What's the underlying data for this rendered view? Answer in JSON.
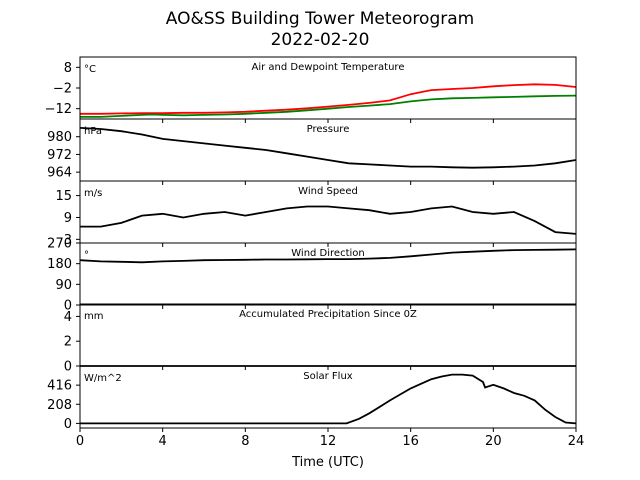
{
  "chart_data": {
    "type": "line",
    "title": "AO&SS Building Tower Meteorogram",
    "subtitle": "2022-02-20",
    "xlabel": "Time (UTC)",
    "x_ticks": [
      "0",
      "4",
      "8",
      "12",
      "16",
      "20",
      "24"
    ],
    "xlim": [
      0,
      24
    ],
    "panels": [
      {
        "label": "Air and Dewpoint Temperature",
        "unit": "°C",
        "ylim": [
          -17,
          13
        ],
        "y_ticks": [
          "8",
          "−2",
          "−12"
        ],
        "series": [
          {
            "key": "air_temperature",
            "color": "#ff0000",
            "x": [
              0,
              1,
              2,
              3,
              4,
              5,
              6,
              7,
              8,
              9,
              10,
              11,
              12,
              13,
              14,
              15,
              15.5,
              16,
              16.5,
              17,
              18,
              19,
              20,
              21,
              22,
              23,
              24
            ],
            "y": [
              -14.5,
              -14.5,
              -14.3,
              -14.2,
              -14.2,
              -14.0,
              -14.0,
              -13.8,
              -13.5,
              -13.0,
              -12.5,
              -11.8,
              -11.0,
              -10.2,
              -9.2,
              -8.0,
              -6.5,
              -5.0,
              -4.0,
              -3.0,
              -2.5,
              -2.0,
              -1.2,
              -0.6,
              -0.2,
              -0.5,
              -1.5
            ]
          },
          {
            "key": "dewpoint",
            "color": "#008000",
            "x": [
              0,
              1,
              2,
              3,
              3.5,
              4,
              5,
              6,
              7,
              8,
              9,
              10,
              11,
              12,
              13,
              14,
              15,
              16,
              17,
              18,
              19,
              20,
              21,
              22,
              23,
              24
            ],
            "y": [
              -16.0,
              -16.0,
              -15.5,
              -15.0,
              -14.8,
              -15.0,
              -15.2,
              -15.0,
              -14.8,
              -14.5,
              -14.0,
              -13.5,
              -12.8,
              -12.0,
              -11.2,
              -10.5,
              -9.8,
              -8.5,
              -7.5,
              -7.0,
              -6.8,
              -6.5,
              -6.3,
              -6.0,
              -5.8,
              -5.7
            ]
          }
        ]
      },
      {
        "label": "Pressure",
        "unit": "hPa",
        "ylim": [
          960,
          988
        ],
        "y_ticks": [
          "980",
          "972",
          "964"
        ],
        "series": [
          {
            "key": "pressure",
            "color": "#000000",
            "x": [
              0,
              1,
              2,
              3,
              4,
              5,
              6,
              7,
              8,
              9,
              10,
              11,
              12,
              13,
              14,
              15,
              16,
              17,
              18,
              19,
              20,
              21,
              22,
              23,
              24
            ],
            "y": [
              984,
              983.5,
              982.5,
              981,
              979,
              978,
              977,
              976,
              975,
              974,
              972.5,
              971,
              969.5,
              968,
              967.5,
              967,
              966.5,
              966.5,
              966.2,
              966,
              966.2,
              966.5,
              967,
              968,
              969.5
            ]
          }
        ]
      },
      {
        "label": "Wind Speed",
        "unit": "m/s",
        "ylim": [
          2,
          19
        ],
        "y_ticks": [
          "15",
          "9",
          "3"
        ],
        "series": [
          {
            "key": "wind_speed",
            "color": "#000000",
            "x": [
              0,
              1,
              2,
              3,
              4,
              5,
              6,
              7,
              8,
              9,
              10,
              11,
              12,
              13,
              14,
              15,
              16,
              17,
              18,
              19,
              20,
              21,
              22,
              23,
              24
            ],
            "y": [
              6.5,
              6.5,
              7.5,
              9.5,
              10.0,
              9.0,
              10.0,
              10.5,
              9.5,
              10.5,
              11.5,
              12.0,
              12.0,
              11.5,
              11.0,
              10.0,
              10.5,
              11.5,
              12.0,
              10.5,
              10.0,
              10.5,
              8.0,
              5.0,
              4.5
            ]
          }
        ]
      },
      {
        "label": "Wind Direction",
        "unit": "°",
        "ylim": [
          0,
          270
        ],
        "y_ticks": [
          "270",
          "180",
          "90",
          "0"
        ],
        "series": [
          {
            "key": "wind_direction",
            "color": "#000000",
            "x": [
              0,
              1,
              2,
              3,
              4,
              5,
              6,
              7,
              8,
              9,
              10,
              11,
              12,
              13,
              14,
              15,
              16,
              17,
              18,
              19,
              20,
              21,
              22,
              23,
              24
            ],
            "y": [
              195,
              190,
              188,
              186,
              190,
              192,
              195,
              196,
              197,
              198,
              198,
              199,
              200,
              200,
              202,
              205,
              212,
              220,
              228,
              232,
              236,
              239,
              240,
              241,
              242
            ]
          }
        ]
      },
      {
        "label": "Accumulated Precipitation Since 0Z",
        "unit": "mm",
        "ylim": [
          0,
          5
        ],
        "y_ticks": [
          "4",
          "2",
          "0"
        ],
        "series": [
          {
            "key": "precipitation",
            "color": "#000000",
            "x": [
              0,
              24
            ],
            "y": [
              0,
              0
            ]
          }
        ]
      },
      {
        "label": "Solar Flux",
        "unit": "W/m^2",
        "ylim": [
          -50,
          624
        ],
        "y_ticks": [
          "416",
          "208",
          "0"
        ],
        "series": [
          {
            "key": "solar_flux",
            "color": "#000000",
            "x": [
              0,
              12.9,
              13.5,
              14,
              15,
              16,
              17,
              17.5,
              18,
              18.5,
              19,
              19.5,
              19.6,
              20,
              20.5,
              21,
              21.5,
              22,
              22.5,
              23,
              23.5,
              24
            ],
            "y": [
              0,
              0,
              50,
              110,
              250,
              380,
              480,
              510,
              530,
              530,
              520,
              450,
              390,
              420,
              380,
              330,
              300,
              250,
              150,
              70,
              10,
              0
            ]
          }
        ]
      }
    ]
  }
}
